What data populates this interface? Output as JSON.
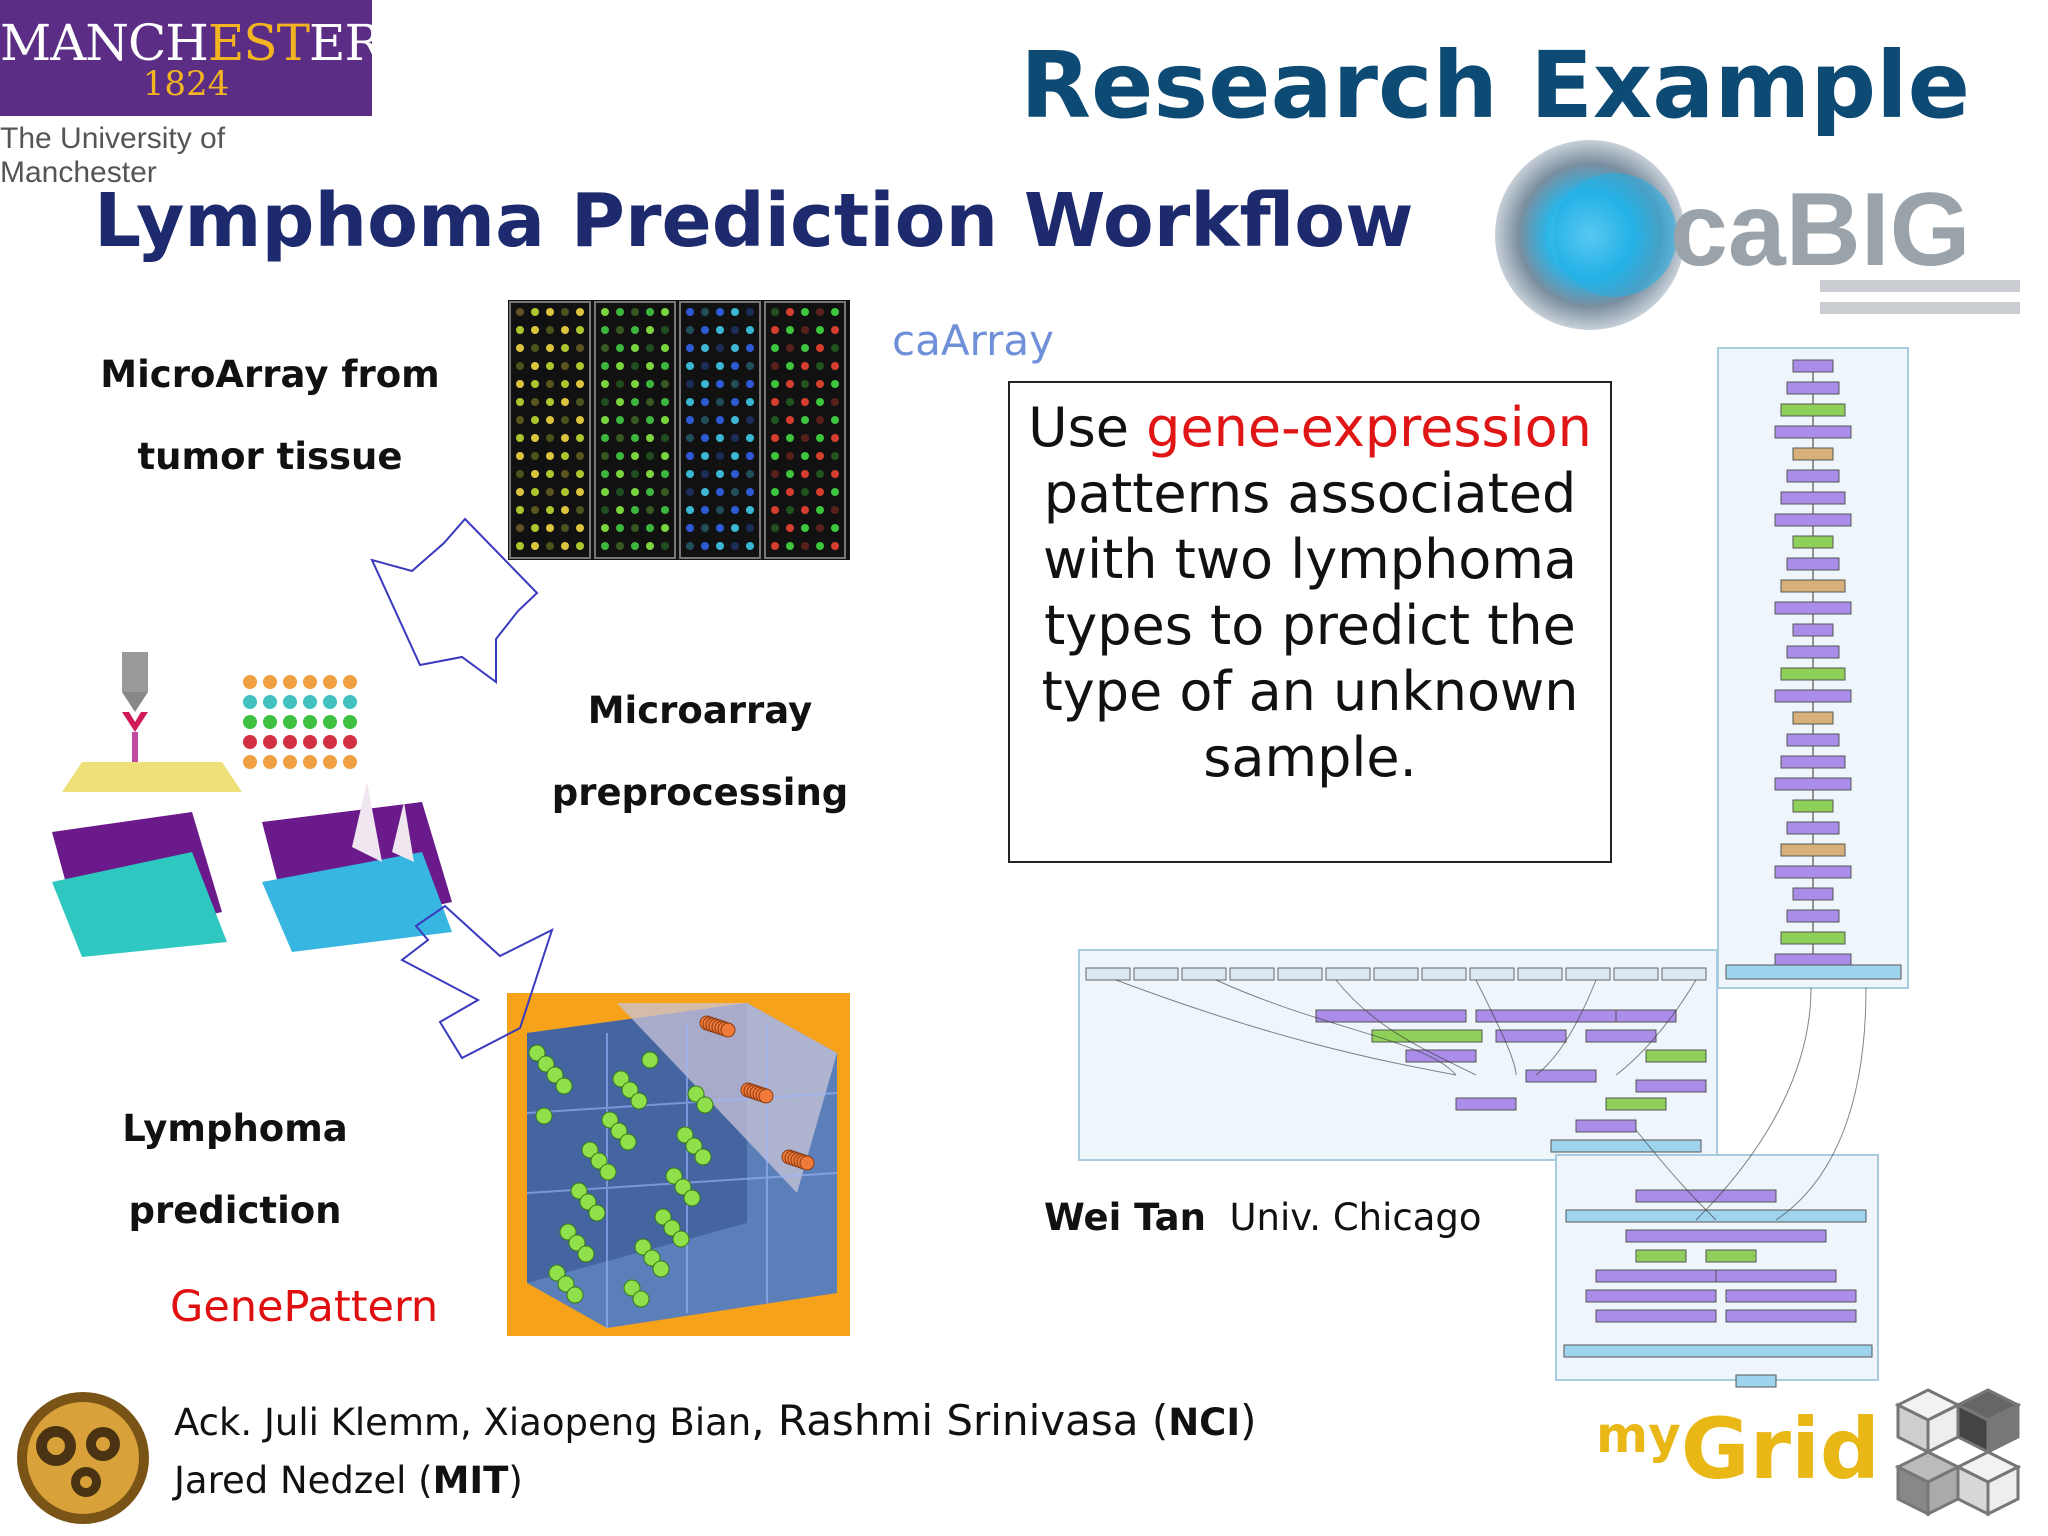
{
  "logo": {
    "name_a": "MANCH",
    "name_b": "EST",
    "name_c": "ER",
    "year": "1824",
    "university": "The University of Manchester"
  },
  "slide": {
    "title": "Research Example",
    "subtitle": "Lymphoma Prediction Workflow"
  },
  "steps": {
    "step1_line1": "MicroArray from",
    "step1_line2": "tumor tissue",
    "step2_line1": "Microarray",
    "step2_line2": "preprocessing",
    "step3_line1": "Lymphoma",
    "step3_line2": "prediction"
  },
  "tools": {
    "caarray": "caArray",
    "genepattern": "GenePattern"
  },
  "quote": {
    "part1": "Use ",
    "part2_red": "gene-expression",
    "part3": " patterns associated with two lymphoma types to predict the type of an unknown sample."
  },
  "credit": {
    "name": "Wei Tan",
    "affiliation": "Univ. Chicago"
  },
  "ack": {
    "line1_a": "Ack. Juli Klemm, Xiaopeng Bian",
    "line1_b": ", Rashmi Srinivasa (",
    "line1_org": "NCI",
    "line1_end": ")",
    "line2_a": "Jared Nedzel (",
    "line2_org": "MIT",
    "line2_end": ")"
  },
  "cabig": {
    "name": "caBIG"
  },
  "mygrid": {
    "my": "my",
    "grid": "Grid"
  },
  "colors": {
    "title": "#0d4a74",
    "subtitle": "#1e2a6e",
    "highlight_red": "#e01515",
    "caarray": "#6f8fd8",
    "manchester_purple": "#5c2d84",
    "manchester_gold": "#f3b421",
    "mygrid_gold": "#e9b817",
    "arrow": "#3a3abf"
  }
}
